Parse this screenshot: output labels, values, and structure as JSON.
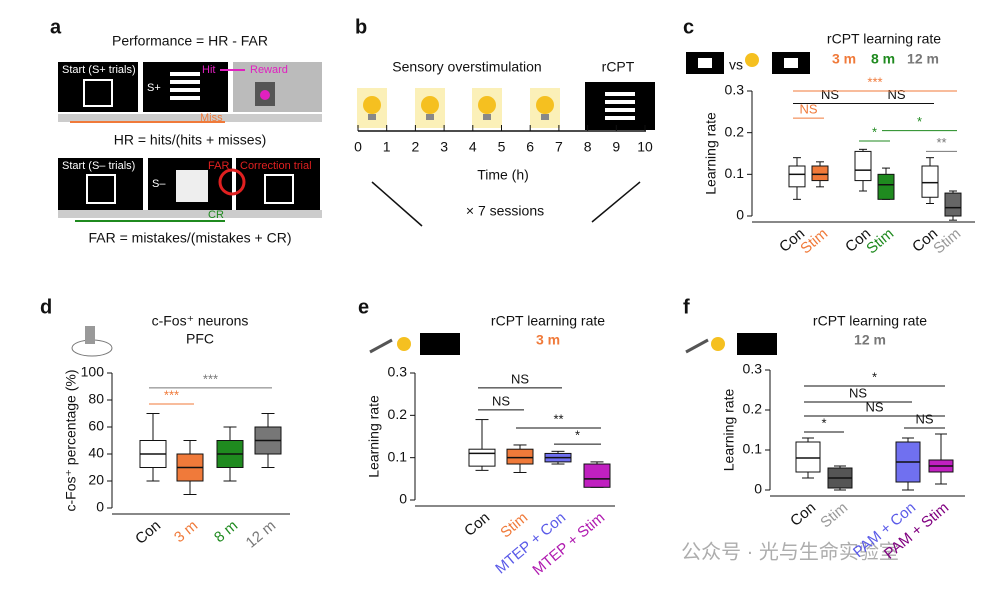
{
  "panel_labels": [
    "a",
    "b",
    "c",
    "d",
    "e",
    "f"
  ],
  "panel_a": {
    "formula_top": "Performance = HR - FAR",
    "start_plus": "Start (S+ trials)",
    "s_plus": "S+",
    "hit": "Hit",
    "reward": "Reward",
    "miss": "Miss",
    "hr_formula": "HR = hits/(hits + misses)",
    "start_minus": "Start (S– trials)",
    "s_minus": "S–",
    "far": "FAR",
    "correction": "Correction trial",
    "cr": "CR",
    "far_formula": "FAR = mistakes/(mistakes + CR)"
  },
  "panel_b": {
    "stim_label": "Sensory overstimulation",
    "rcpt": "rCPT",
    "ticks": [
      "0",
      "1",
      "2",
      "3",
      "4",
      "5",
      "6",
      "7",
      "8",
      "9",
      "10"
    ],
    "xlabel": "Time (h)",
    "sessions": "× 7 sessions"
  },
  "watermark": "公众号 · 光与生命实验室",
  "chart_data": [
    {
      "type": "box",
      "title": "rCPT learning rate",
      "vs": "vs",
      "legend": [
        {
          "text": "3 m",
          "color": "#f07a3a"
        },
        {
          "text": "8 m",
          "color": "#1f8a1f"
        },
        {
          "text": "12 m",
          "color": "#777777"
        }
      ],
      "ylabel": "Learning rate",
      "ylim": [
        0,
        0.3
      ],
      "yticks": [
        0,
        0.1,
        0.2,
        0.3
      ],
      "categories": [
        "Con",
        "Stim",
        "Con",
        "Stim",
        "Con",
        "Stim"
      ],
      "label_colors": [
        "#111111",
        "#f07a3a",
        "#111111",
        "#1f8a1f",
        "#111111",
        "#999999"
      ],
      "box_colors": [
        "#ffffff",
        "#f07a3a",
        "#ffffff",
        "#1f8a1f",
        "#ffffff",
        "#666666"
      ],
      "boxes": [
        {
          "min": 0.04,
          "q1": 0.07,
          "median": 0.1,
          "q3": 0.12,
          "max": 0.14
        },
        {
          "min": 0.07,
          "q1": 0.085,
          "median": 0.1,
          "q3": 0.12,
          "max": 0.13
        },
        {
          "min": 0.06,
          "q1": 0.085,
          "median": 0.11,
          "q3": 0.155,
          "max": 0.16
        },
        {
          "min": 0.04,
          "q1": 0.04,
          "median": 0.075,
          "q3": 0.1,
          "max": 0.115
        },
        {
          "min": 0.03,
          "q1": 0.045,
          "median": 0.08,
          "q3": 0.12,
          "max": 0.14
        },
        {
          "min": -0.01,
          "q1": 0,
          "median": 0.02,
          "q3": 0.055,
          "max": 0.06
        }
      ],
      "annotations": [
        {
          "text": "NS",
          "color": "#f07a3a"
        },
        {
          "text": "NS",
          "color": "#111111"
        },
        {
          "text": "NS",
          "color": "#111111"
        },
        {
          "text": "***",
          "color": "#f07a3a"
        },
        {
          "text": "*",
          "color": "#1f8a1f"
        },
        {
          "text": "*",
          "color": "#1f8a1f"
        },
        {
          "text": "**",
          "color": "#777777"
        }
      ]
    },
    {
      "type": "box",
      "title": "c-Fos⁺ neurons",
      "subtitle": "PFC",
      "ylabel": "c-Fos⁺ percentage (%)",
      "ylim": [
        0,
        100
      ],
      "yticks": [
        0,
        20,
        40,
        60,
        80,
        100
      ],
      "categories": [
        "Con",
        "3 m",
        "8 m",
        "12 m"
      ],
      "label_colors": [
        "#111111",
        "#f07a3a",
        "#1f8a1f",
        "#777777"
      ],
      "box_colors": [
        "#ffffff",
        "#f07a3a",
        "#1f8a1f",
        "#777777"
      ],
      "boxes": [
        {
          "min": 20,
          "q1": 30,
          "median": 40,
          "q3": 50,
          "max": 70
        },
        {
          "min": 10,
          "q1": 20,
          "median": 30,
          "q3": 40,
          "max": 50
        },
        {
          "min": 20,
          "q1": 30,
          "median": 40,
          "q3": 50,
          "max": 60
        },
        {
          "min": 30,
          "q1": 40,
          "median": 50,
          "q3": 60,
          "max": 70
        }
      ],
      "annotations": [
        {
          "text": "***",
          "color": "#f07a3a"
        },
        {
          "text": "***",
          "color": "#777777"
        }
      ]
    },
    {
      "type": "box",
      "title": "rCPT learning rate",
      "legend": [
        {
          "text": "3 m",
          "color": "#f07a3a"
        }
      ],
      "ylabel": "Learning rate",
      "ylim": [
        0,
        0.3
      ],
      "yticks": [
        0,
        0.1,
        0.2,
        0.3
      ],
      "categories": [
        "Con",
        "Stim",
        "MTEP + Con",
        "MTEP + Stim"
      ],
      "label_colors": [
        "#111111",
        "#f07a3a",
        "#5a5ae8",
        "#b01ab0"
      ],
      "box_colors": [
        "#ffffff",
        "#f07a3a",
        "#7070f0",
        "#c020c0"
      ],
      "boxes": [
        {
          "min": 0.07,
          "q1": 0.08,
          "median": 0.11,
          "q3": 0.12,
          "max": 0.19
        },
        {
          "min": 0.065,
          "q1": 0.085,
          "median": 0.1,
          "q3": 0.12,
          "max": 0.13
        },
        {
          "min": 0.085,
          "q1": 0.09,
          "median": 0.1,
          "q3": 0.11,
          "max": 0.115
        },
        {
          "min": 0.03,
          "q1": 0.03,
          "median": 0.05,
          "q3": 0.085,
          "max": 0.09
        }
      ],
      "annotations": [
        {
          "text": "NS",
          "color": "#111111"
        },
        {
          "text": "NS",
          "color": "#111111"
        },
        {
          "text": "**",
          "color": "#111111"
        },
        {
          "text": "*",
          "color": "#111111"
        }
      ]
    },
    {
      "type": "box",
      "title": "rCPT learning rate",
      "legend": [
        {
          "text": "12 m",
          "color": "#777777"
        }
      ],
      "ylabel": "Learning rate",
      "ylim": [
        0,
        0.3
      ],
      "yticks": [
        0,
        0.1,
        0.2,
        0.3
      ],
      "categories": [
        "Con",
        "Stim",
        "PAM + Con",
        "PAM + Stim"
      ],
      "label_colors": [
        "#111111",
        "#999999",
        "#5a5ae8",
        "#800080"
      ],
      "box_colors": [
        "#ffffff",
        "#555555",
        "#7070f0",
        "#c020c0"
      ],
      "boxes": [
        {
          "min": 0.03,
          "q1": 0.045,
          "median": 0.08,
          "q3": 0.12,
          "max": 0.13
        },
        {
          "min": 0,
          "q1": 0.005,
          "median": 0.03,
          "q3": 0.055,
          "max": 0.06
        },
        {
          "min": 0,
          "q1": 0.02,
          "median": 0.07,
          "q3": 0.12,
          "max": 0.13
        },
        {
          "min": 0.015,
          "q1": 0.045,
          "median": 0.06,
          "q3": 0.075,
          "max": 0.14
        }
      ],
      "annotations": [
        {
          "text": "*",
          "color": "#111111"
        },
        {
          "text": "NS",
          "color": "#111111"
        },
        {
          "text": "NS",
          "color": "#111111"
        },
        {
          "text": "*",
          "color": "#111111"
        },
        {
          "text": "NS",
          "color": "#111111"
        }
      ]
    }
  ]
}
